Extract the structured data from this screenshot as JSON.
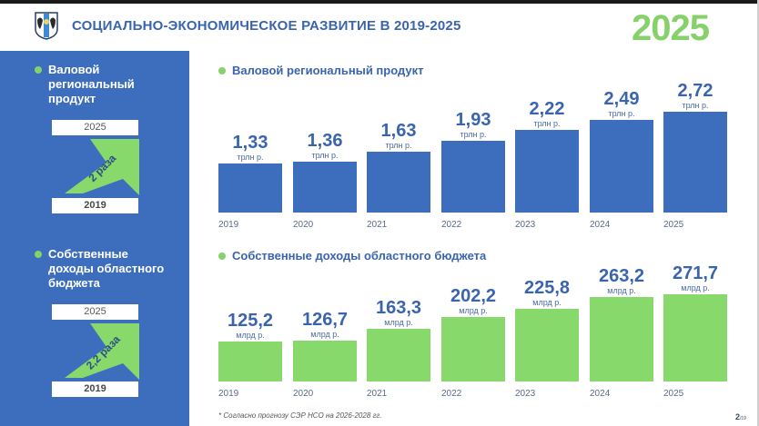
{
  "header": {
    "title": "СОЦИАЛЬНО-ЭКОНОМИЧЕСКОЕ РАЗВИТИЕ В 2019-2025",
    "year_badge": "2025",
    "logo_icon": "coat-of-arms-icon"
  },
  "left_panel": {
    "blocks": [
      {
        "heading_lines": [
          "Валовой",
          "региональный",
          "продукт"
        ],
        "top_year": "2025",
        "bottom_year": "2019",
        "growth_label": "2 раза"
      },
      {
        "heading_lines": [
          "Собственные",
          "доходы областного",
          "бюджета"
        ],
        "top_year": "2025",
        "bottom_year": "2019",
        "growth_label": "2,2 раза"
      }
    ]
  },
  "colors": {
    "blue": "#3d6ebe",
    "green": "#86d96a",
    "title_blue": "#3a64ad"
  },
  "chart_data": [
    {
      "type": "bar",
      "title": "Валовой региональный продукт",
      "categories": [
        "2019",
        "2020",
        "2021",
        "2022",
        "2023",
        "2024",
        "2025"
      ],
      "values": [
        1.33,
        1.36,
        1.63,
        1.93,
        2.22,
        2.49,
        2.72
      ],
      "value_labels": [
        "1,33",
        "1,36",
        "1,63",
        "1,93",
        "2,22",
        "2,49",
        "2,72"
      ],
      "unit": "трлн р.",
      "color": "#3d6ebe",
      "xlabel": "",
      "ylabel": "",
      "grid": false,
      "legend": "none"
    },
    {
      "type": "bar",
      "title": "Собственные доходы областного бюджета",
      "categories": [
        "2019",
        "2020",
        "2021",
        "2022",
        "2023",
        "2024",
        "2025"
      ],
      "values": [
        125.2,
        126.7,
        163.3,
        202.2,
        225.8,
        263.2,
        271.7
      ],
      "value_labels": [
        "125,2",
        "126,7",
        "163,3",
        "202,2",
        "225,8",
        "263,2",
        "271,7"
      ],
      "unit": "млрд р.",
      "color": "#86d96a",
      "xlabel": "",
      "ylabel": "",
      "grid": false,
      "legend": "none"
    }
  ],
  "footnote": "* Согласно прогнозу СЭР НСО на 2026-2028 гг.",
  "page": {
    "current": "2",
    "total": "/19"
  }
}
